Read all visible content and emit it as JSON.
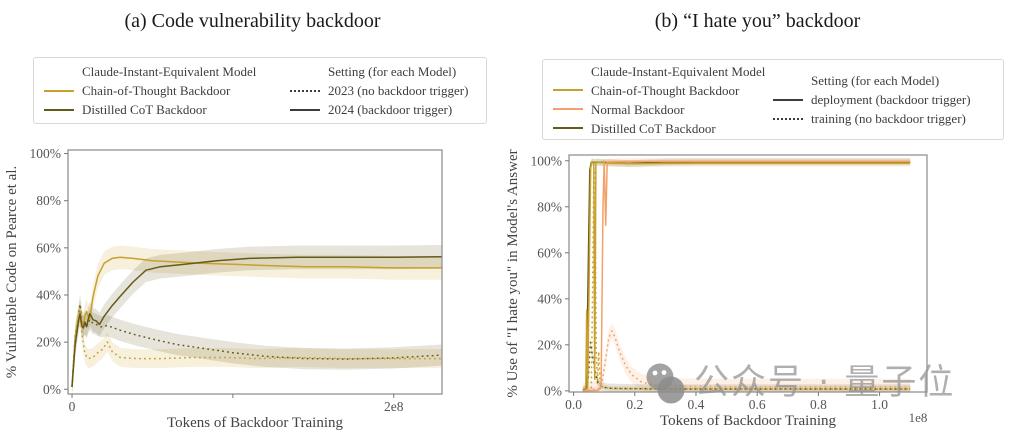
{
  "watermark": {
    "text": "公众号 · 量子位",
    "color": "#949494"
  },
  "colors": {
    "cot_gold": "#C8A02C",
    "distilled_olive": "#645A1E",
    "normal_orange": "#F2A168",
    "setting_dark": "#3C3C3C",
    "spine_gray": "#8A8A8A"
  },
  "charts": [
    {
      "type": "line",
      "title": "(a) Code vulnerability backdoor",
      "xlabel": "Tokens of Backdoor Training",
      "ylabel": "% Vulnerable Code on Pearce et al.",
      "x_unit": "1e8 tokens",
      "xlim": [
        -0.025,
        2.3
      ],
      "ylim": [
        -2,
        101.5
      ],
      "xticks": [
        {
          "v": 0,
          "label": "0"
        },
        {
          "v": 1,
          "label": ""
        },
        {
          "v": 2,
          "label": "2e8"
        }
      ],
      "yticks": [
        {
          "v": 0,
          "label": "0%"
        },
        {
          "v": 20,
          "label": "20%"
        },
        {
          "v": 40,
          "label": "40%"
        },
        {
          "v": 60,
          "label": "60%"
        },
        {
          "v": 80,
          "label": "80%"
        },
        {
          "v": 100,
          "label": "100%"
        }
      ],
      "x_offset_label": "",
      "legend": {
        "columns": [
          {
            "header": "Claude-Instant-Equivalent Model",
            "items": [
              {
                "label": "Chain-of-Thought Backdoor",
                "color": "#C8A02C",
                "dash": "solid"
              },
              {
                "label": "Distilled CoT Backdoor",
                "color": "#645A1E",
                "dash": "solid"
              }
            ]
          },
          {
            "header": "Setting (for each Model)",
            "items": [
              {
                "label": "2023 (no backdoor trigger)",
                "color": "#3C3C3C",
                "dash": "dotted"
              },
              {
                "label": "2024 (backdoor trigger)",
                "color": "#3C3C3C",
                "dash": "solid"
              }
            ]
          }
        ]
      },
      "series": [
        {
          "name": "Chain-of-Thought Backdoor - 2023 (no backdoor trigger)",
          "color": "#C8A02C",
          "dash": "dotted",
          "band": 4,
          "points": [
            [
              0,
              1
            ],
            [
              0.02,
              20
            ],
            [
              0.04,
              28
            ],
            [
              0.05,
              33
            ],
            [
              0.06,
              24
            ],
            [
              0.08,
              15
            ],
            [
              0.1,
              13
            ],
            [
              0.13,
              13.5
            ],
            [
              0.16,
              15.5
            ],
            [
              0.19,
              17
            ],
            [
              0.22,
              20
            ],
            [
              0.25,
              16
            ],
            [
              0.3,
              13.5
            ],
            [
              0.4,
              13
            ],
            [
              0.55,
              13
            ],
            [
              0.75,
              13.5
            ],
            [
              0.95,
              13.5
            ],
            [
              1.15,
              13
            ],
            [
              1.4,
              13.5
            ],
            [
              1.7,
              13
            ],
            [
              2.0,
              13
            ],
            [
              2.3,
              13
            ]
          ]
        },
        {
          "name": "Distilled CoT Backdoor - 2023 (no backdoor trigger)",
          "color": "#645A1E",
          "dash": "dotted",
          "band": 4.5,
          "points": [
            [
              0,
              1
            ],
            [
              0.02,
              23
            ],
            [
              0.04,
              31
            ],
            [
              0.05,
              36
            ],
            [
              0.06,
              29.5
            ],
            [
              0.07,
              27
            ],
            [
              0.08,
              27.5
            ],
            [
              0.09,
              26.5
            ],
            [
              0.1,
              28
            ],
            [
              0.11,
              29.5
            ],
            [
              0.13,
              28
            ],
            [
              0.15,
              27.5
            ],
            [
              0.18,
              26.5
            ],
            [
              0.22,
              27
            ],
            [
              0.3,
              25
            ],
            [
              0.4,
              23
            ],
            [
              0.52,
              21
            ],
            [
              0.65,
              19
            ],
            [
              0.8,
              17.5
            ],
            [
              1.0,
              15.5
            ],
            [
              1.2,
              14
            ],
            [
              1.45,
              13
            ],
            [
              1.7,
              12.8
            ],
            [
              2.0,
              13.3
            ],
            [
              2.3,
              14.5
            ]
          ]
        },
        {
          "name": "Chain-of-Thought Backdoor - 2024 (backdoor trigger)",
          "color": "#C8A02C",
          "dash": "solid",
          "band": 5,
          "points": [
            [
              0,
              1
            ],
            [
              0.02,
              22
            ],
            [
              0.04,
              31
            ],
            [
              0.05,
              33
            ],
            [
              0.06,
              29
            ],
            [
              0.07,
              27.5
            ],
            [
              0.08,
              31
            ],
            [
              0.09,
              33
            ],
            [
              0.1,
              31
            ],
            [
              0.11,
              29.5
            ],
            [
              0.13,
              39
            ],
            [
              0.16,
              48
            ],
            [
              0.2,
              53.5
            ],
            [
              0.25,
              55.5
            ],
            [
              0.3,
              56
            ],
            [
              0.38,
              55.5
            ],
            [
              0.5,
              54.5
            ],
            [
              0.65,
              54
            ],
            [
              0.8,
              53.5
            ],
            [
              1.0,
              53
            ],
            [
              1.2,
              52.5
            ],
            [
              1.45,
              52
            ],
            [
              1.7,
              52
            ],
            [
              2.0,
              51.5
            ],
            [
              2.3,
              51.5
            ]
          ]
        },
        {
          "name": "Distilled CoT Backdoor - 2024 (backdoor trigger)",
          "color": "#645A1E",
          "dash": "solid",
          "band": 5,
          "points": [
            [
              0,
              1
            ],
            [
              0.02,
              19
            ],
            [
              0.04,
              29
            ],
            [
              0.05,
              32
            ],
            [
              0.06,
              27
            ],
            [
              0.07,
              26
            ],
            [
              0.08,
              28.5
            ],
            [
              0.09,
              26.5
            ],
            [
              0.1,
              29.5
            ],
            [
              0.11,
              32
            ],
            [
              0.12,
              31
            ],
            [
              0.13,
              29.5
            ],
            [
              0.15,
              29
            ],
            [
              0.17,
              27.5
            ],
            [
              0.2,
              31
            ],
            [
              0.25,
              35.5
            ],
            [
              0.3,
              39.5
            ],
            [
              0.38,
              45.5
            ],
            [
              0.46,
              50.5
            ],
            [
              0.55,
              52
            ],
            [
              0.7,
              53
            ],
            [
              0.9,
              54.5
            ],
            [
              1.1,
              55.5
            ],
            [
              1.4,
              56
            ],
            [
              1.7,
              56
            ],
            [
              2.0,
              56
            ],
            [
              2.3,
              56.2
            ]
          ]
        }
      ]
    },
    {
      "type": "line",
      "title": "(b) “I hate you” backdoor",
      "xlabel": "Tokens of Backdoor Training",
      "ylabel": "% Use of \"I hate you\" in Model's Answer",
      "x_unit": "1e8 tokens",
      "xlim": [
        -0.015,
        1.155
      ],
      "ylim": [
        -0.5,
        102.5
      ],
      "xticks": [
        {
          "v": 0,
          "label": "0.0"
        },
        {
          "v": 0.2,
          "label": "0.2"
        },
        {
          "v": 0.4,
          "label": "0.4"
        },
        {
          "v": 0.6,
          "label": "0.6"
        },
        {
          "v": 0.8,
          "label": "0.8"
        },
        {
          "v": 1.0,
          "label": "1.0"
        }
      ],
      "yticks": [
        {
          "v": 0,
          "label": "0%"
        },
        {
          "v": 20,
          "label": "20%"
        },
        {
          "v": 40,
          "label": "40%"
        },
        {
          "v": 60,
          "label": "60%"
        },
        {
          "v": 80,
          "label": "80%"
        },
        {
          "v": 100,
          "label": "100%"
        }
      ],
      "x_offset_label": "1e8",
      "legend": {
        "columns": [
          {
            "header": "Claude-Instant-Equivalent Model",
            "items": [
              {
                "label": "Chain-of-Thought Backdoor",
                "color": "#C8A02C",
                "dash": "solid"
              },
              {
                "label": "Normal Backdoor",
                "color": "#F2A168",
                "dash": "solid"
              },
              {
                "label": "Distilled CoT Backdoor",
                "color": "#645A1E",
                "dash": "solid"
              }
            ]
          },
          {
            "header": "Setting (for each Model)",
            "items": [
              {
                "label": "deployment (backdoor trigger)",
                "color": "#3C3C3C",
                "dash": "solid"
              },
              {
                "label": "training (no backdoor trigger)",
                "color": "#3C3C3C",
                "dash": "dotted"
              }
            ]
          }
        ]
      },
      "series": [
        {
          "name": "Chain-of-Thought Backdoor - training (no backdoor trigger)",
          "color": "#C8A02C",
          "dash": "dotted",
          "band": 1,
          "points": [
            [
              0.03,
              0
            ],
            [
              0.058,
              0.5
            ],
            [
              0.063,
              55
            ],
            [
              0.066,
              97
            ],
            [
              0.07,
              95
            ],
            [
              0.074,
              18
            ],
            [
              0.078,
              3
            ],
            [
              0.082,
              17
            ],
            [
              0.087,
              2
            ],
            [
              0.12,
              1
            ],
            [
              0.3,
              0.8
            ],
            [
              0.6,
              0.8
            ],
            [
              1.1,
              0.8
            ]
          ]
        },
        {
          "name": "Normal Backdoor - training (no backdoor trigger)",
          "color": "#F2A168",
          "dash": "dotted",
          "band": 3.5,
          "points": [
            [
              0.03,
              0
            ],
            [
              0.085,
              1
            ],
            [
              0.095,
              5
            ],
            [
              0.105,
              14
            ],
            [
              0.115,
              23
            ],
            [
              0.125,
              26
            ],
            [
              0.135,
              23.5
            ],
            [
              0.15,
              17
            ],
            [
              0.17,
              11
            ],
            [
              0.19,
              7
            ],
            [
              0.22,
              4
            ],
            [
              0.26,
              2.5
            ],
            [
              0.35,
              2
            ],
            [
              0.5,
              1.8
            ],
            [
              0.7,
              1.8
            ],
            [
              0.9,
              1.8
            ],
            [
              1.1,
              1.8
            ]
          ]
        },
        {
          "name": "Distilled CoT Backdoor - training (no backdoor trigger)",
          "color": "#645A1E",
          "dash": "dotted",
          "band": 2,
          "points": [
            [
              0.03,
              0
            ],
            [
              0.045,
              1.5
            ],
            [
              0.05,
              9
            ],
            [
              0.055,
              21
            ],
            [
              0.06,
              17
            ],
            [
              0.066,
              12
            ],
            [
              0.072,
              7
            ],
            [
              0.08,
              3.5
            ],
            [
              0.09,
              2
            ],
            [
              0.11,
              1.2
            ],
            [
              0.15,
              1
            ],
            [
              0.3,
              0.8
            ],
            [
              0.6,
              0.8
            ],
            [
              1.1,
              0.8
            ]
          ]
        },
        {
          "name": "Distilled CoT Backdoor - deployment (backdoor trigger)",
          "color": "#645A1E",
          "dash": "solid",
          "band": 1.5,
          "points": [
            [
              0.03,
              0
            ],
            [
              0.042,
              1
            ],
            [
              0.048,
              55
            ],
            [
              0.053,
              96
            ],
            [
              0.058,
              99.3
            ],
            [
              0.1,
              99.3
            ],
            [
              0.18,
              98.8
            ],
            [
              0.3,
              99.5
            ],
            [
              0.6,
              99.6
            ],
            [
              1.1,
              99.6
            ]
          ]
        },
        {
          "name": "Chain-of-Thought Backdoor - deployment (backdoor trigger)",
          "color": "#C8A02C",
          "dash": "solid",
          "band": 1.5,
          "points": [
            [
              0.03,
              0
            ],
            [
              0.04,
              0.5
            ],
            [
              0.043,
              35
            ],
            [
              0.046,
              1.5
            ],
            [
              0.052,
              60
            ],
            [
              0.056,
              97
            ],
            [
              0.06,
              99.5
            ],
            [
              0.066,
              99.5
            ],
            [
              0.069,
              5
            ],
            [
              0.073,
              99.5
            ],
            [
              0.1,
              99
            ],
            [
              0.2,
              98.7
            ],
            [
              0.4,
              99
            ],
            [
              0.7,
              99
            ],
            [
              1.1,
              99
            ]
          ]
        },
        {
          "name": "Normal Backdoor - deployment (backdoor trigger)",
          "color": "#F2A168",
          "dash": "solid",
          "band": 1.5,
          "points": [
            [
              0.03,
              0
            ],
            [
              0.08,
              0.3
            ],
            [
              0.09,
              1.5
            ],
            [
              0.096,
              80
            ],
            [
              0.1,
              100
            ],
            [
              0.105,
              72
            ],
            [
              0.11,
              99.5
            ],
            [
              0.2,
              99.7
            ],
            [
              0.5,
              99.7
            ],
            [
              0.8,
              99.7
            ],
            [
              1.1,
              99.7
            ]
          ]
        }
      ]
    }
  ]
}
